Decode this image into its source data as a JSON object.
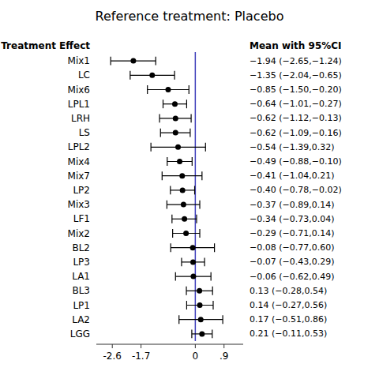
{
  "chart_data": {
    "type": "forest",
    "title": "Reference treatment: Placebo",
    "annotations": [
      "Treatment Effect",
      "Mean with 95%CI"
    ],
    "categories": [
      "Mix1",
      "LC",
      "Mix6",
      "LPL1",
      "LRH",
      "LS",
      "LPL2",
      "Mix4",
      "Mix7",
      "LP2",
      "Mix3",
      "LF1",
      "Mix2",
      "BL2",
      "LP3",
      "LA1",
      "BL3",
      "LP1",
      "LA2",
      "LGG"
    ],
    "values": [
      -1.94,
      -1.35,
      -0.85,
      -0.64,
      -0.62,
      -0.62,
      -0.54,
      -0.49,
      -0.41,
      -0.4,
      -0.37,
      -0.34,
      -0.29,
      -0.08,
      -0.07,
      -0.06,
      0.13,
      0.14,
      0.17,
      0.21
    ],
    "lo": [
      -2.65,
      -2.04,
      -1.5,
      -1.01,
      -1.12,
      -1.09,
      -1.39,
      -0.88,
      -1.04,
      -0.78,
      -0.89,
      -0.73,
      -0.71,
      -0.77,
      -0.43,
      -0.62,
      -0.28,
      -0.27,
      -0.51,
      -0.11
    ],
    "hi": [
      -1.24,
      -0.65,
      -0.2,
      -0.27,
      -0.13,
      -0.16,
      0.32,
      -0.1,
      0.21,
      -0.02,
      0.14,
      0.04,
      0.14,
      0.6,
      0.29,
      0.49,
      0.54,
      0.56,
      0.86,
      0.53
    ],
    "value_labels": [
      "−1.94 (−2.65,−1.24)",
      "−1.35 (−2.04,−0.65)",
      "−0.85 (−1.50,−0.20)",
      "−0.64 (−1.01,−0.27)",
      "−0.62 (−1.12,−0.13)",
      "−0.62 (−1.09,−0.16)",
      "−0.54 (−1.39,0.32)",
      "−0.49 (−0.88,−0.10)",
      "−0.41 (−1.04,0.21)",
      "−0.40 (−0.78,−0.02)",
      "−0.37 (−0.89,0.14)",
      "−0.34 (−0.73,0.04)",
      "−0.29 (−0.71,0.14)",
      "−0.08 (−0.77,0.60)",
      "−0.07 (−0.43,0.29)",
      "−0.06 (−0.62,0.49)",
      "0.13 (−0.28,0.54)",
      "0.14 (−0.27,0.56)",
      "0.17 (−0.51,0.86)",
      "0.21 (−0.11,0.53)"
    ],
    "data_labels": true,
    "color": "black",
    "reference": {
      "value": 0,
      "color": "#4040bb"
    },
    "xlim": [
      -3.1,
      1.5
    ],
    "xticks": [
      -2.6,
      -1.7,
      0,
      {
        "value": 0.9,
        "label": ".9"
      }
    ],
    "grid": false,
    "tick_labels": "x"
  }
}
